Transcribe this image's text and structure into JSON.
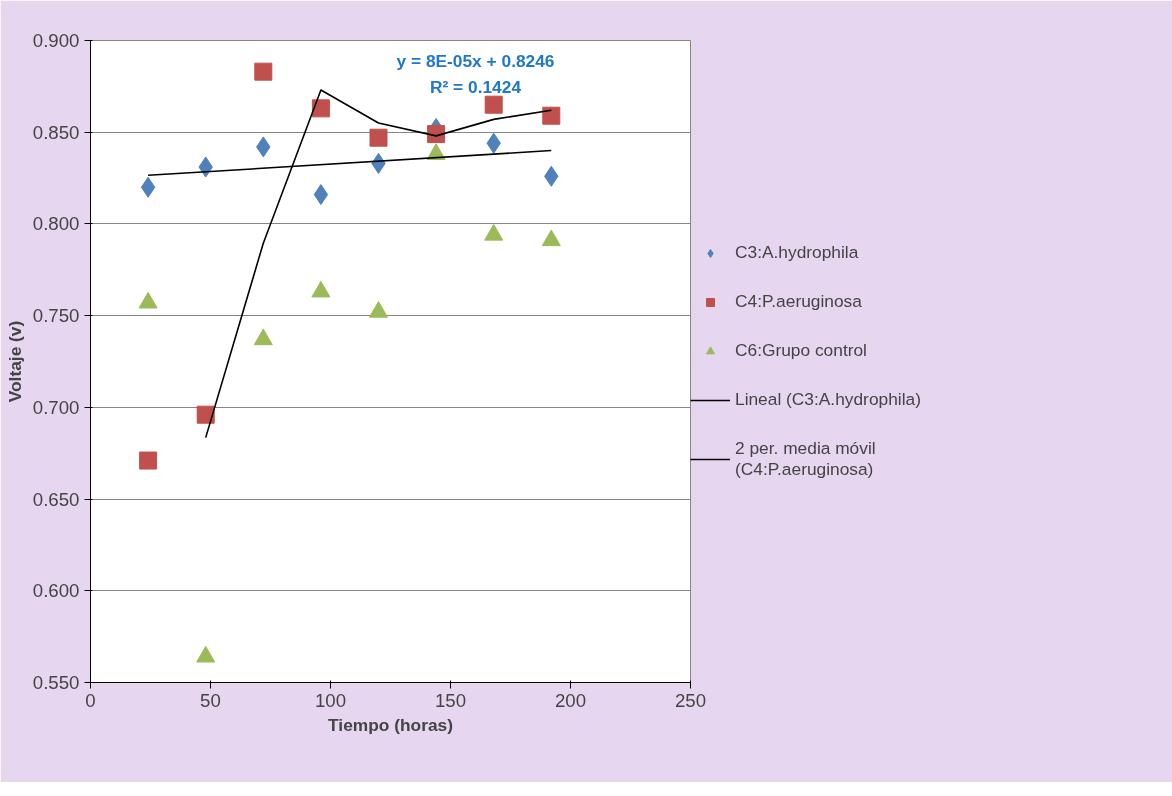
{
  "chart_data": {
    "type": "scatter",
    "xlabel": "Tiempo (horas)",
    "ylabel": "Voltaje (v)",
    "xlim": [
      0,
      250
    ],
    "xticks": [
      0,
      50,
      100,
      150,
      200,
      250
    ],
    "ylim": [
      0.55,
      0.9
    ],
    "yticks": [
      {
        "value": 0.55,
        "label": "0.550"
      },
      {
        "value": 0.6,
        "label": "0.600"
      },
      {
        "value": 0.65,
        "label": "0.650"
      },
      {
        "value": 0.7,
        "label": "0.700"
      },
      {
        "value": 0.75,
        "label": "0.750"
      },
      {
        "value": 0.8,
        "label": "0.800"
      },
      {
        "value": 0.85,
        "label": "0.850"
      },
      {
        "value": 0.9,
        "label": "0.900"
      }
    ],
    "grid": "y",
    "legend": "right",
    "x": [
      24,
      48,
      72,
      96,
      120,
      144,
      168,
      192
    ],
    "series": [
      {
        "name": "C3:A.hydrophila",
        "color": "#4f81bd",
        "marker": "diamond",
        "values": [
          0.82,
          0.831,
          0.842,
          0.816,
          0.833,
          0.852,
          0.844,
          0.826
        ]
      },
      {
        "name": "C4:P.aeruginosa",
        "color": "#c0504d",
        "marker": "square",
        "values": [
          0.671,
          0.696,
          0.883,
          0.863,
          0.847,
          0.849,
          0.865,
          0.859
        ]
      },
      {
        "name": "C6:Grupo control",
        "color": "#9bbb59",
        "marker": "triangle",
        "values": [
          0.757,
          0.564,
          0.737,
          0.763,
          0.752,
          0.838,
          0.794,
          0.791
        ]
      },
      {
        "name": "Lineal (C3:A.hydrophila)",
        "type": "line",
        "color": "#000000",
        "x": [
          24,
          192
        ],
        "values": [
          0.8265,
          0.84
        ]
      },
      {
        "name": "2 per. media móvil (C4:P.aeruginosa)",
        "type": "line",
        "color": "#000000",
        "x": [
          48,
          72,
          96,
          120,
          144,
          168,
          192
        ],
        "values": [
          0.6835,
          0.7895,
          0.873,
          0.855,
          0.848,
          0.857,
          0.862
        ]
      }
    ],
    "annotations": [
      "y = 8E-05x + 0.8246",
      "R² = 0.1424"
    ]
  }
}
